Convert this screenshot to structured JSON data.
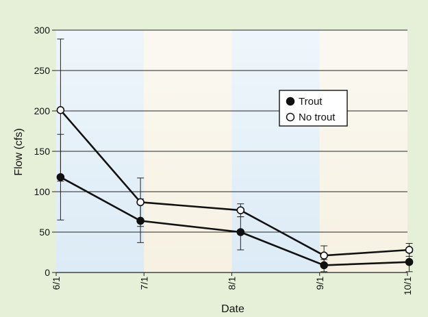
{
  "chart_data": {
    "type": "line",
    "xlabel": "Date",
    "ylabel": "Flow (cfs)",
    "x": [
      "6/1",
      "7/1",
      "8/1",
      "9/1",
      "10/1"
    ],
    "ylim": [
      0,
      300
    ],
    "yticks": [
      0,
      50,
      100,
      150,
      200,
      250,
      300
    ],
    "grid": "horizontal",
    "legend_position": "right",
    "series": [
      {
        "name": "Trout",
        "marker": "filled-circle",
        "color": "#111111",
        "points": [
          {
            "x": 0.05,
            "y": 118,
            "err_low": 65,
            "err_high": 171
          },
          {
            "x": 0.96,
            "y": 64,
            "err_low": 37,
            "err_high": 91
          },
          {
            "x": 2.1,
            "y": 50,
            "err_low": 28,
            "err_high": 69
          },
          {
            "x": 3.05,
            "y": 9,
            "err_low": 1,
            "err_high": 16
          },
          {
            "x": 4.02,
            "y": 13,
            "err_low": 1,
            "err_high": 25
          }
        ]
      },
      {
        "name": "No trout",
        "marker": "open-circle",
        "color": "#111111",
        "points": [
          {
            "x": 0.05,
            "y": 201,
            "err_low": 113,
            "err_high": 289
          },
          {
            "x": 0.96,
            "y": 87,
            "err_low": 57,
            "err_high": 117
          },
          {
            "x": 2.1,
            "y": 77,
            "err_low": 69,
            "err_high": 85
          },
          {
            "x": 3.05,
            "y": 21,
            "err_low": 8,
            "err_high": 33
          },
          {
            "x": 4.02,
            "y": 28,
            "err_low": 20,
            "err_high": 36
          }
        ]
      }
    ]
  },
  "colors": {
    "frame_background": "#e6f0d8",
    "band_blue": "#dcebf6",
    "band_cream": "#f6f1e2",
    "grid": "#222222"
  }
}
